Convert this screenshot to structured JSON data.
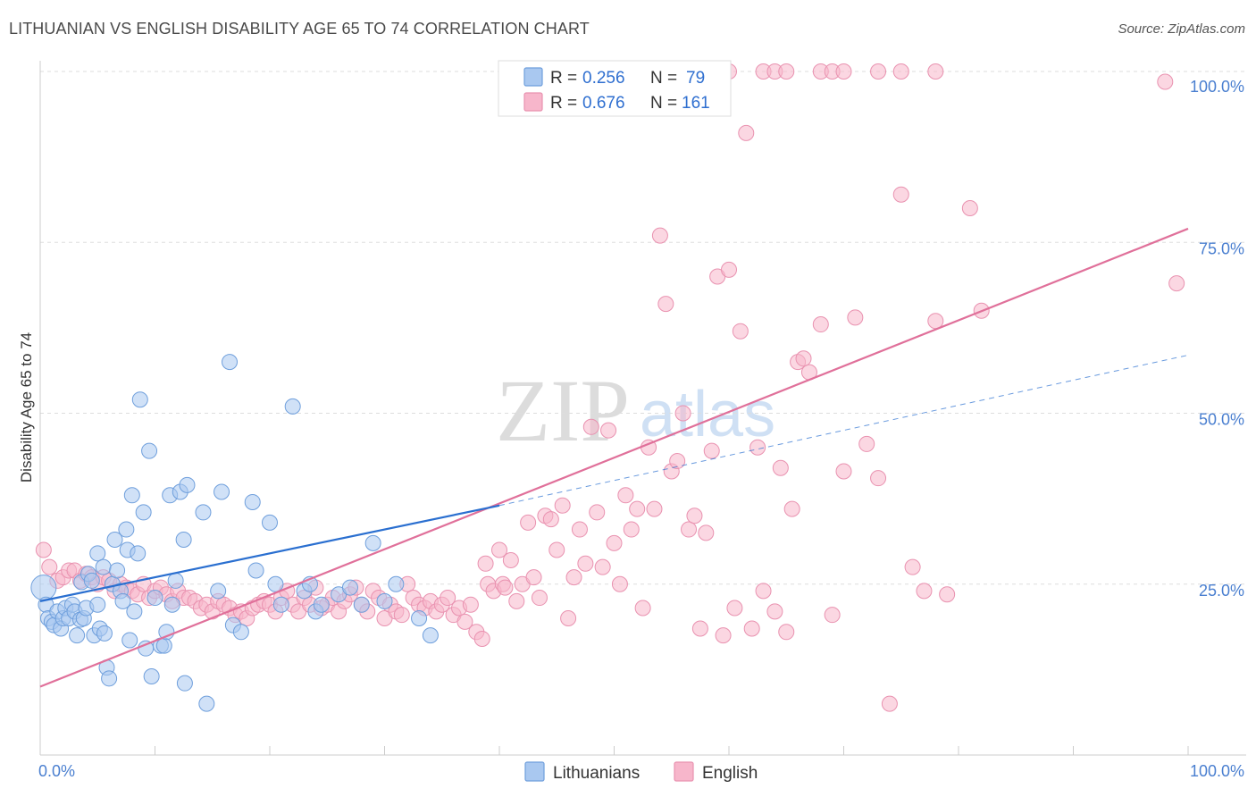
{
  "title": "LITHUANIAN VS ENGLISH DISABILITY AGE 65 TO 74 CORRELATION CHART",
  "source": "Source: ZipAtlas.com",
  "watermark": {
    "zip": "ZIP",
    "atlas": "atlas"
  },
  "legend": {
    "rows": [
      {
        "r_label": "R = ",
        "r_value": "0.256",
        "n_label": "N = ",
        "n_value": "79",
        "color": "#a9c8f0"
      },
      {
        "r_label": "R = ",
        "r_value": "0.676",
        "n_label": "N = ",
        "n_value": "161",
        "color": "#f7b6cb"
      }
    ]
  },
  "bottom_legend": [
    {
      "label": "Lithuanians",
      "color": "#a9c8f0"
    },
    {
      "label": "English",
      "color": "#f7b6cb"
    }
  ],
  "colors": {
    "blue_fill": "#a9c8f0",
    "blue_stroke": "#6f9fdc",
    "blue_line": "#2a6fd0",
    "pink_fill": "#f7b6cb",
    "pink_stroke": "#e992b0",
    "pink_line": "#e0709a",
    "grid": "#dddddd",
    "tick_label": "#4a7fd0"
  },
  "chart_data": {
    "type": "scatter",
    "title": "LITHUANIAN VS ENGLISH DISABILITY AGE 65 TO 74 CORRELATION CHART",
    "xlabel": "",
    "ylabel": "Disability Age 65 to 74",
    "xlim": [
      0,
      100
    ],
    "ylim": [
      0,
      100
    ],
    "x_tick_labels": [
      "0.0%",
      "100.0%"
    ],
    "y_ticks": [
      25,
      50,
      75,
      100
    ],
    "y_tick_labels": [
      "25.0%",
      "50.0%",
      "75.0%",
      "100.0%"
    ],
    "grid": true,
    "legend_position": "top-center",
    "series": [
      {
        "name": "Lithuanians",
        "color": "#a9c8f0",
        "r": 0.256,
        "n": 79,
        "trend": {
          "x0": 0,
          "y0": 22.5,
          "x1": 40,
          "y1": 36.5,
          "dashed_to_x": 100,
          "dashed_to_y": 58.5
        },
        "points": [
          [
            0.3,
            24.5
          ],
          [
            0.5,
            22
          ],
          [
            0.7,
            20
          ],
          [
            1,
            19.5
          ],
          [
            1.2,
            19
          ],
          [
            1.5,
            21
          ],
          [
            1.8,
            18.5
          ],
          [
            2,
            20
          ],
          [
            2.2,
            21.5
          ],
          [
            2.5,
            20
          ],
          [
            2.8,
            22
          ],
          [
            3,
            21
          ],
          [
            3.2,
            17.5
          ],
          [
            3.5,
            19.8
          ],
          [
            3.6,
            25.3
          ],
          [
            3.8,
            20
          ],
          [
            4,
            21.5
          ],
          [
            4.2,
            26.5
          ],
          [
            4.5,
            25.5
          ],
          [
            4.7,
            17.5
          ],
          [
            5,
            22
          ],
          [
            5,
            29.5
          ],
          [
            5.2,
            18.5
          ],
          [
            5.5,
            27.5
          ],
          [
            5.6,
            17.8
          ],
          [
            5.8,
            12.8
          ],
          [
            6,
            11.2
          ],
          [
            6.3,
            25
          ],
          [
            6.5,
            31.5
          ],
          [
            6.7,
            27
          ],
          [
            7,
            24
          ],
          [
            7.2,
            22.5
          ],
          [
            7.5,
            33
          ],
          [
            7.6,
            30
          ],
          [
            7.8,
            16.8
          ],
          [
            8,
            38
          ],
          [
            8.2,
            21
          ],
          [
            8.5,
            29.5
          ],
          [
            8.7,
            52
          ],
          [
            9,
            35.5
          ],
          [
            9.2,
            15.6
          ],
          [
            9.5,
            44.5
          ],
          [
            9.7,
            11.5
          ],
          [
            10,
            23
          ],
          [
            10.5,
            16
          ],
          [
            10.8,
            16
          ],
          [
            11,
            18
          ],
          [
            11.3,
            38
          ],
          [
            11.5,
            22
          ],
          [
            11.8,
            25.5
          ],
          [
            12.2,
            38.5
          ],
          [
            12.5,
            31.5
          ],
          [
            12.6,
            10.5
          ],
          [
            12.8,
            39.5
          ],
          [
            14.2,
            35.5
          ],
          [
            14.5,
            7.5
          ],
          [
            15.5,
            24
          ],
          [
            15.8,
            38.5
          ],
          [
            16.5,
            57.5
          ],
          [
            16.8,
            19
          ],
          [
            17.5,
            18
          ],
          [
            18.5,
            37
          ],
          [
            18.8,
            27
          ],
          [
            20,
            34
          ],
          [
            20.5,
            25
          ],
          [
            21,
            22
          ],
          [
            22,
            51
          ],
          [
            23,
            24
          ],
          [
            23.5,
            25
          ],
          [
            24,
            21
          ],
          [
            24.5,
            22
          ],
          [
            26,
            23.5
          ],
          [
            27,
            24.5
          ],
          [
            28,
            22
          ],
          [
            29,
            31
          ],
          [
            30,
            22.5
          ],
          [
            31,
            25
          ],
          [
            33,
            20
          ],
          [
            34,
            17.5
          ]
        ]
      },
      {
        "name": "English",
        "color": "#f7b6cb",
        "r": 0.676,
        "n": 161,
        "trend": {
          "x0": 0,
          "y0": 10,
          "x1": 100,
          "y1": 77
        },
        "points": [
          [
            0.3,
            30
          ],
          [
            0.8,
            27.5
          ],
          [
            1.5,
            25.5
          ],
          [
            2,
            26
          ],
          [
            2.5,
            27
          ],
          [
            3,
            27
          ],
          [
            3.5,
            25.5
          ],
          [
            4,
            26.5
          ],
          [
            4.5,
            26
          ],
          [
            5,
            25
          ],
          [
            5.5,
            26
          ],
          [
            6,
            25.5
          ],
          [
            6.5,
            24
          ],
          [
            7,
            25
          ],
          [
            7.5,
            24.5
          ],
          [
            8,
            24
          ],
          [
            8.5,
            23.5
          ],
          [
            9,
            25
          ],
          [
            9.5,
            23
          ],
          [
            10,
            24
          ],
          [
            10.5,
            24.5
          ],
          [
            11,
            23.5
          ],
          [
            11.5,
            22.5
          ],
          [
            12,
            24
          ],
          [
            12.5,
            23
          ],
          [
            13,
            23
          ],
          [
            13.5,
            22.5
          ],
          [
            14,
            21.5
          ],
          [
            14.5,
            22
          ],
          [
            15,
            21
          ],
          [
            15.5,
            22.5
          ],
          [
            16,
            22
          ],
          [
            16.5,
            21.5
          ],
          [
            17,
            20.5
          ],
          [
            17.5,
            21
          ],
          [
            18,
            20
          ],
          [
            18.5,
            21.5
          ],
          [
            19,
            22
          ],
          [
            19.5,
            22.5
          ],
          [
            20,
            22
          ],
          [
            20.5,
            21
          ],
          [
            21,
            23
          ],
          [
            21.5,
            24
          ],
          [
            22,
            22
          ],
          [
            22.5,
            21
          ],
          [
            23,
            23
          ],
          [
            23.5,
            22
          ],
          [
            24,
            24.5
          ],
          [
            24.5,
            21.5
          ],
          [
            25,
            22
          ],
          [
            25.5,
            23
          ],
          [
            26,
            21
          ],
          [
            26.5,
            22.5
          ],
          [
            27,
            23.5
          ],
          [
            27.5,
            24.5
          ],
          [
            28,
            22
          ],
          [
            28.5,
            21
          ],
          [
            29,
            24
          ],
          [
            29.5,
            23
          ],
          [
            30,
            20
          ],
          [
            30.5,
            22
          ],
          [
            31,
            21
          ],
          [
            31.5,
            20.5
          ],
          [
            32,
            25
          ],
          [
            32.5,
            23
          ],
          [
            33,
            22
          ],
          [
            33.5,
            21.5
          ],
          [
            34,
            22.5
          ],
          [
            34.5,
            21
          ],
          [
            35,
            22
          ],
          [
            35.5,
            23
          ],
          [
            36,
            20.5
          ],
          [
            36.5,
            21.5
          ],
          [
            37,
            19.5
          ],
          [
            37.5,
            22
          ],
          [
            38,
            18
          ],
          [
            38.5,
            17
          ],
          [
            38.8,
            28
          ],
          [
            39,
            25
          ],
          [
            39.5,
            24
          ],
          [
            40,
            30
          ],
          [
            40.3,
            25
          ],
          [
            40.5,
            24.5
          ],
          [
            41,
            28.5
          ],
          [
            41.5,
            22.5
          ],
          [
            42,
            25
          ],
          [
            42.5,
            34
          ],
          [
            43,
            26
          ],
          [
            43.5,
            23
          ],
          [
            44,
            35
          ],
          [
            44.5,
            34.5
          ],
          [
            45,
            30
          ],
          [
            45.5,
            36.5
          ],
          [
            46,
            20
          ],
          [
            46.5,
            26
          ],
          [
            47,
            33
          ],
          [
            47.5,
            28
          ],
          [
            48,
            48
          ],
          [
            48.5,
            35.5
          ],
          [
            49,
            27.5
          ],
          [
            49.5,
            47.5
          ],
          [
            50,
            31
          ],
          [
            50.5,
            25
          ],
          [
            51,
            38
          ],
          [
            51.5,
            33
          ],
          [
            52,
            36
          ],
          [
            52.5,
            21.5
          ],
          [
            53,
            45
          ],
          [
            53.5,
            36
          ],
          [
            54,
            76
          ],
          [
            54.5,
            66
          ],
          [
            55,
            41.5
          ],
          [
            55.5,
            43
          ],
          [
            56,
            50
          ],
          [
            56.5,
            33
          ],
          [
            57,
            35
          ],
          [
            57.5,
            18.5
          ],
          [
            58,
            32.5
          ],
          [
            58.5,
            44.5
          ],
          [
            59,
            70
          ],
          [
            59.5,
            17.5
          ],
          [
            60,
            71
          ],
          [
            60.5,
            21.5
          ],
          [
            61,
            62
          ],
          [
            61.5,
            91
          ],
          [
            62,
            18.5
          ],
          [
            62.5,
            45
          ],
          [
            63,
            24
          ],
          [
            64,
            21
          ],
          [
            64.5,
            42
          ],
          [
            65,
            18
          ],
          [
            65.5,
            36
          ],
          [
            66,
            57.5
          ],
          [
            66.5,
            58
          ],
          [
            67,
            56
          ],
          [
            68,
            63
          ],
          [
            69,
            20.5
          ],
          [
            70,
            41.5
          ],
          [
            71,
            64
          ],
          [
            72,
            45.5
          ],
          [
            73,
            40.5
          ],
          [
            74,
            7.5
          ],
          [
            75,
            82
          ],
          [
            76,
            27.5
          ],
          [
            77,
            24
          ],
          [
            78,
            63.5
          ],
          [
            79,
            23.5
          ],
          [
            81,
            80
          ],
          [
            82,
            65
          ],
          [
            98,
            98.5
          ],
          [
            99,
            69
          ],
          [
            60,
            100
          ],
          [
            63,
            100
          ],
          [
            64,
            100
          ],
          [
            65,
            100
          ],
          [
            68,
            100
          ],
          [
            69,
            100
          ],
          [
            70,
            100
          ],
          [
            73,
            100
          ],
          [
            75,
            100
          ],
          [
            78,
            100
          ]
        ]
      }
    ]
  }
}
